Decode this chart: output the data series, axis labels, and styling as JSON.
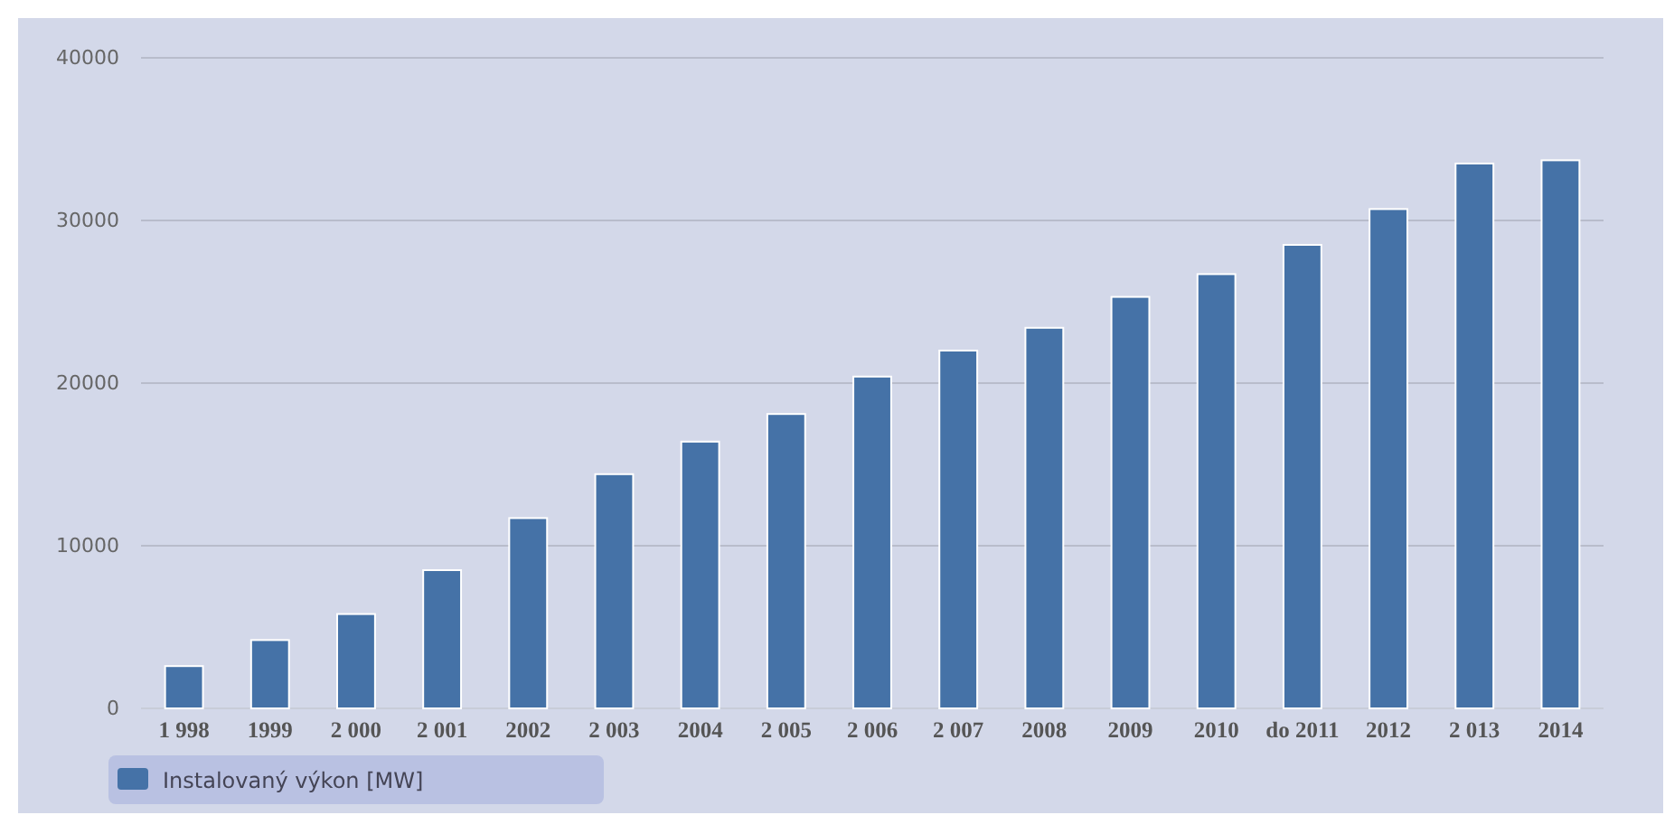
{
  "chart_data": {
    "type": "bar",
    "categories": [
      "1 998",
      "1999",
      "2 000",
      "2 001",
      "2002",
      "2 003",
      "2004",
      "2 005",
      "2 006",
      "2 007",
      "2008",
      "2009",
      "2010",
      "do 2011",
      "2012",
      "2 013",
      "2014"
    ],
    "series": [
      {
        "name": "Instalovaný výkon [MW]",
        "color": "#4572a7",
        "values": [
          2600,
          4200,
          5800,
          8500,
          11700,
          14400,
          16400,
          18100,
          20400,
          22000,
          23400,
          25300,
          26700,
          28500,
          30700,
          33500,
          33700
        ]
      }
    ],
    "ylim": [
      0,
      40000
    ],
    "yticks": [
      0,
      10000,
      20000,
      30000,
      40000
    ],
    "grid": "y",
    "legend": "bottom left"
  }
}
